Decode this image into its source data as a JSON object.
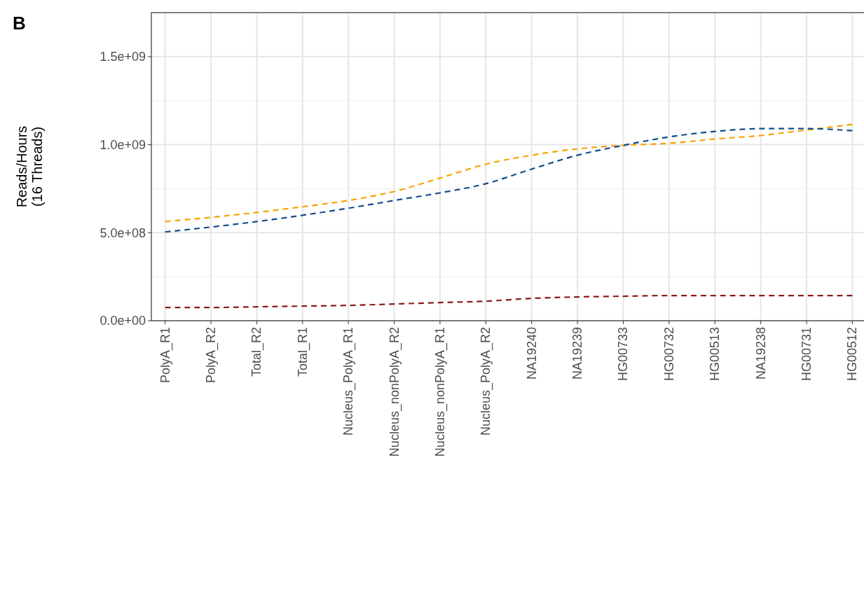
{
  "chart_data": {
    "type": "line",
    "title": "B",
    "ylabel": "Reads/Hours\n(16 Threads)",
    "categories": [
      "PolyA_R1",
      "PolyA_R2",
      "Total_R2",
      "Total_R1",
      "Nucleus_PolyA_R1",
      "Nucleus_nonPolyA_R2",
      "Nucleus_nonPolyA_R1",
      "Nucleus_PolyA_R2",
      "NA19240",
      "NA19239",
      "HG00733",
      "HG00732",
      "HG00513",
      "NA19238",
      "HG00731",
      "HG00512"
    ],
    "series": [
      {
        "color": "#f5a300",
        "values": [
          563000000.0,
          587000000.0,
          615000000.0,
          647000000.0,
          683000000.0,
          734000000.0,
          810000000.0,
          889000000.0,
          940000000.0,
          976000000.0,
          996000000.0,
          1008000000.0,
          1032000000.0,
          1052000000.0,
          1083000000.0,
          1115000000.0
        ]
      },
      {
        "color": "#104e8b",
        "values": [
          504000000.0,
          532000000.0,
          563000000.0,
          599000000.0,
          639000000.0,
          683000000.0,
          726000000.0,
          778000000.0,
          861000000.0,
          940000000.0,
          996000000.0,
          1044000000.0,
          1075000000.0,
          1091000000.0,
          1091000000.0,
          1079000000.0
        ]
      },
      {
        "color": "#8b1a1a",
        "values": [
          75000000.0,
          75000000.0,
          79000000.0,
          83000000.0,
          87000000.0,
          95000000.0,
          103000000.0,
          111000000.0,
          127000000.0,
          135000000.0,
          139000000.0,
          143000000.0,
          143000000.0,
          143000000.0,
          143000000.0,
          143000000.0
        ]
      }
    ],
    "ylim": [
      0,
      1750000000.0
    ],
    "yticks": [
      {
        "value": 0,
        "label": "0.0e+00"
      },
      {
        "value": 500000000.0,
        "label": "5.0e+08"
      },
      {
        "value": 1000000000.0,
        "label": "1.0e+09"
      },
      {
        "value": 1500000000.0,
        "label": "1.5e+09"
      }
    ],
    "grid": true,
    "line_style": "dashed"
  }
}
